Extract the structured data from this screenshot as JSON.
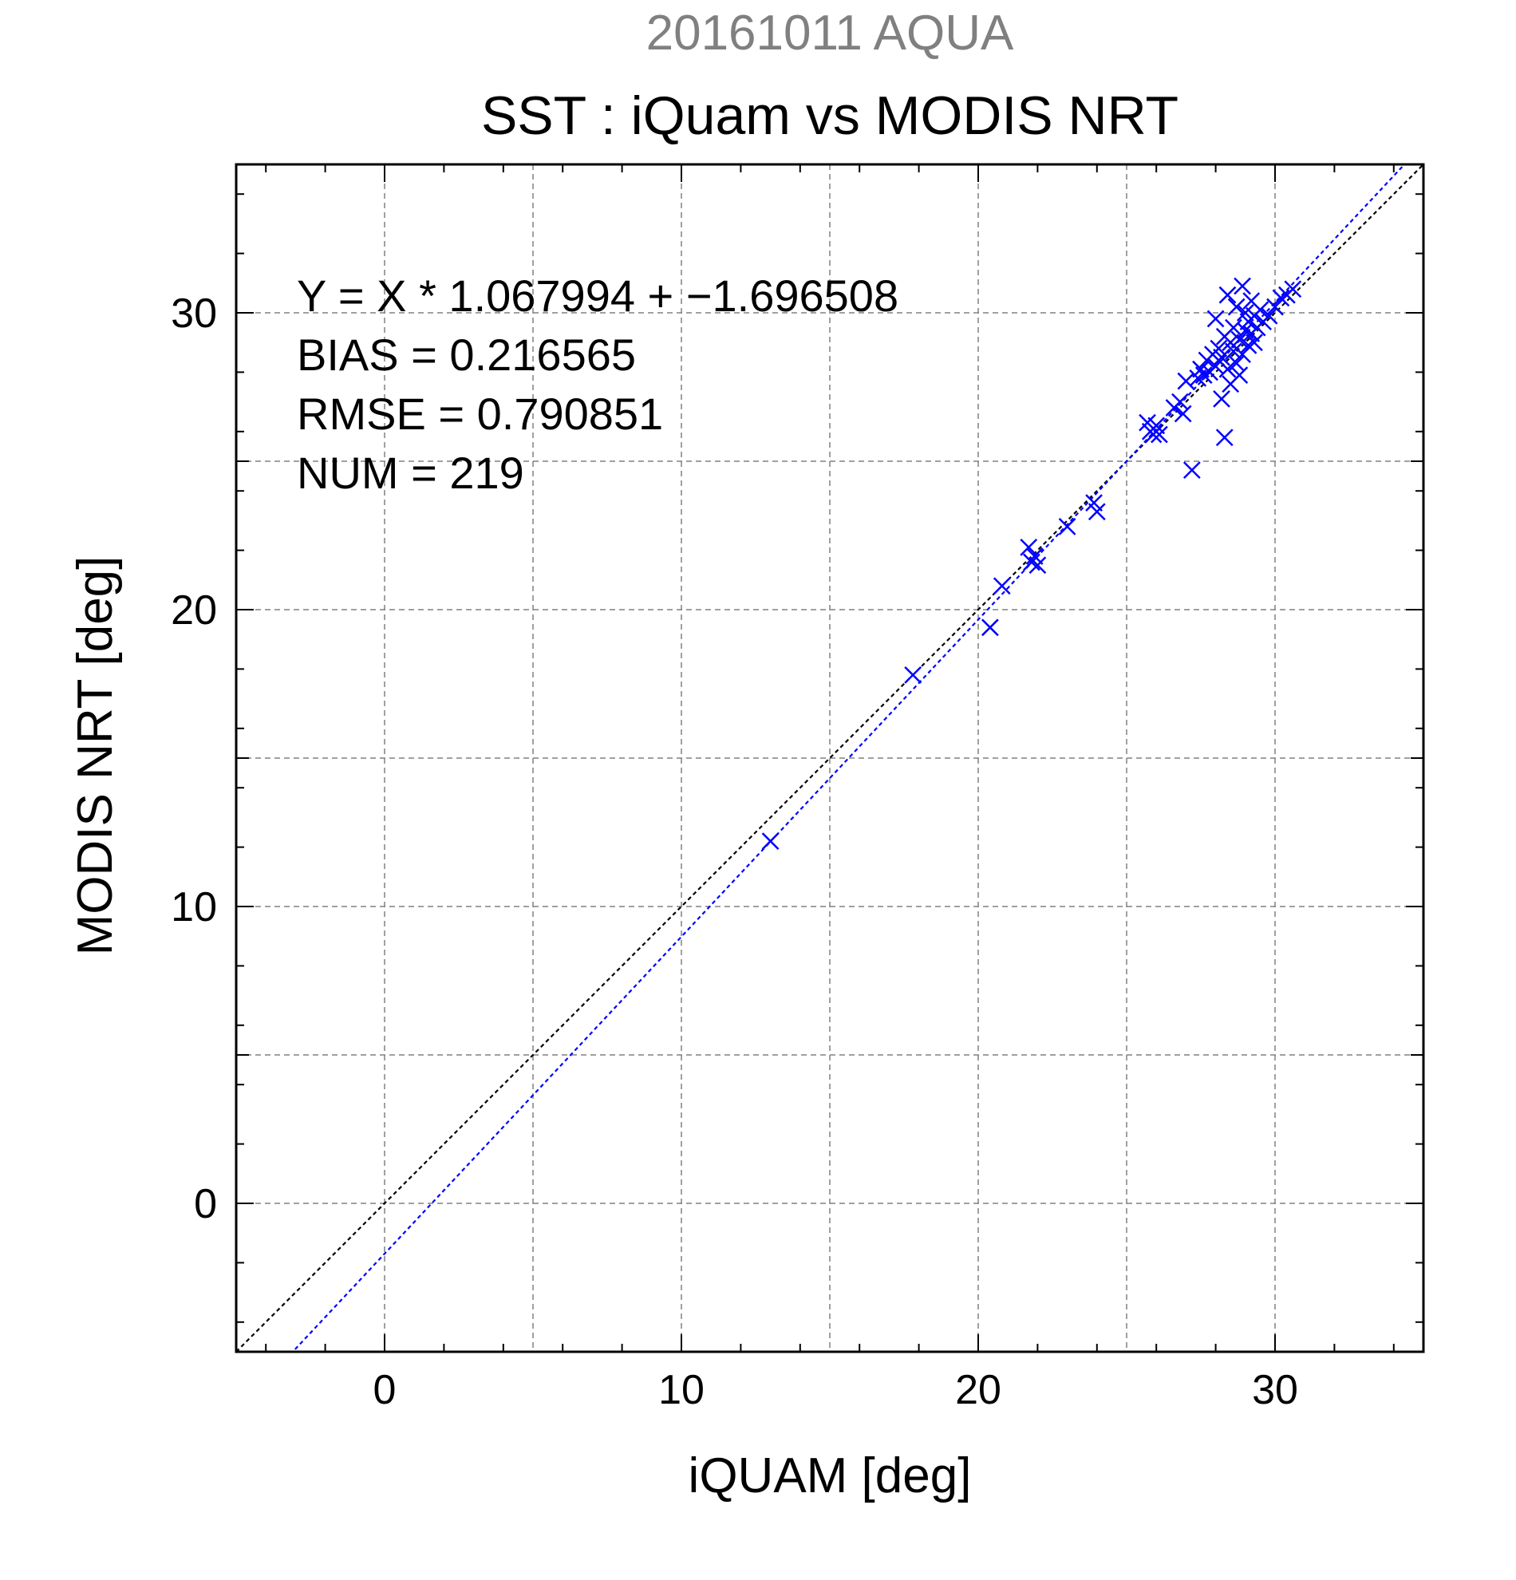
{
  "header": {
    "date_title": "20161011 AQUA",
    "main_title": "SST : iQuam vs MODIS NRT"
  },
  "chart_data": {
    "type": "scatter",
    "title": "SST : iQuam vs MODIS NRT",
    "subtitle": "20161011 AQUA",
    "xlabel": "iQUAM [deg]",
    "ylabel": "MODIS NRT [deg]",
    "xlim": [
      -5,
      35
    ],
    "ylim": [
      -5,
      35
    ],
    "xticks": [
      0,
      10,
      20,
      30
    ],
    "yticks": [
      0,
      10,
      20,
      30
    ],
    "grid": true,
    "marker": "x",
    "colors": {
      "points": "#0000ff",
      "fit_line": "#0000ff",
      "identity_line": "#000000",
      "subtitle": "#808080",
      "grid": "#808080"
    },
    "stats": [
      "Y = X * 1.067994 + −1.696508",
      "BIAS = 0.216565",
      "RMSE = 0.790851",
      "NUM = 219"
    ],
    "lines": [
      {
        "kind": "identity",
        "slope": 1.0,
        "intercept": 0.0
      },
      {
        "kind": "regression",
        "slope": 1.067994,
        "intercept": -1.696508
      }
    ],
    "points": [
      [
        13.0,
        12.2
      ],
      [
        17.8,
        17.8
      ],
      [
        20.4,
        19.4
      ],
      [
        20.8,
        20.8
      ],
      [
        21.7,
        22.1
      ],
      [
        21.8,
        21.6
      ],
      [
        21.9,
        21.8
      ],
      [
        22.0,
        21.5
      ],
      [
        23.0,
        22.8
      ],
      [
        23.9,
        23.6
      ],
      [
        24.0,
        23.3
      ],
      [
        25.7,
        26.3
      ],
      [
        25.8,
        26.0
      ],
      [
        25.9,
        25.9
      ],
      [
        26.0,
        26.2
      ],
      [
        26.1,
        25.9
      ],
      [
        26.6,
        26.8
      ],
      [
        26.8,
        27.0
      ],
      [
        26.9,
        26.6
      ],
      [
        27.0,
        27.7
      ],
      [
        27.2,
        24.7
      ],
      [
        27.4,
        27.8
      ],
      [
        27.5,
        28.1
      ],
      [
        27.6,
        27.9
      ],
      [
        27.7,
        28.4
      ],
      [
        27.8,
        28.0
      ],
      [
        27.9,
        28.6
      ],
      [
        28.0,
        28.2
      ],
      [
        28.0,
        29.8
      ],
      [
        28.1,
        28.8
      ],
      [
        28.2,
        27.1
      ],
      [
        28.2,
        28.5
      ],
      [
        28.3,
        25.8
      ],
      [
        28.3,
        29.2
      ],
      [
        28.4,
        28.1
      ],
      [
        28.4,
        30.6
      ],
      [
        28.5,
        29.0
      ],
      [
        28.5,
        27.6
      ],
      [
        28.6,
        28.7
      ],
      [
        28.6,
        29.5
      ],
      [
        28.7,
        28.3
      ],
      [
        28.7,
        30.2
      ],
      [
        28.8,
        29.1
      ],
      [
        28.8,
        27.9
      ],
      [
        28.9,
        30.9
      ],
      [
        28.9,
        28.6
      ],
      [
        29.0,
        29.4
      ],
      [
        29.0,
        30.0
      ],
      [
        29.1,
        28.9
      ],
      [
        29.1,
        29.7
      ],
      [
        29.2,
        29.3
      ],
      [
        29.2,
        30.4
      ],
      [
        29.3,
        29.0
      ],
      [
        29.3,
        29.9
      ],
      [
        29.4,
        29.5
      ],
      [
        29.5,
        30.1
      ],
      [
        29.6,
        29.7
      ],
      [
        29.8,
        29.9
      ],
      [
        30.0,
        30.2
      ],
      [
        30.2,
        30.5
      ],
      [
        30.4,
        30.6
      ],
      [
        30.6,
        30.8
      ]
    ]
  }
}
